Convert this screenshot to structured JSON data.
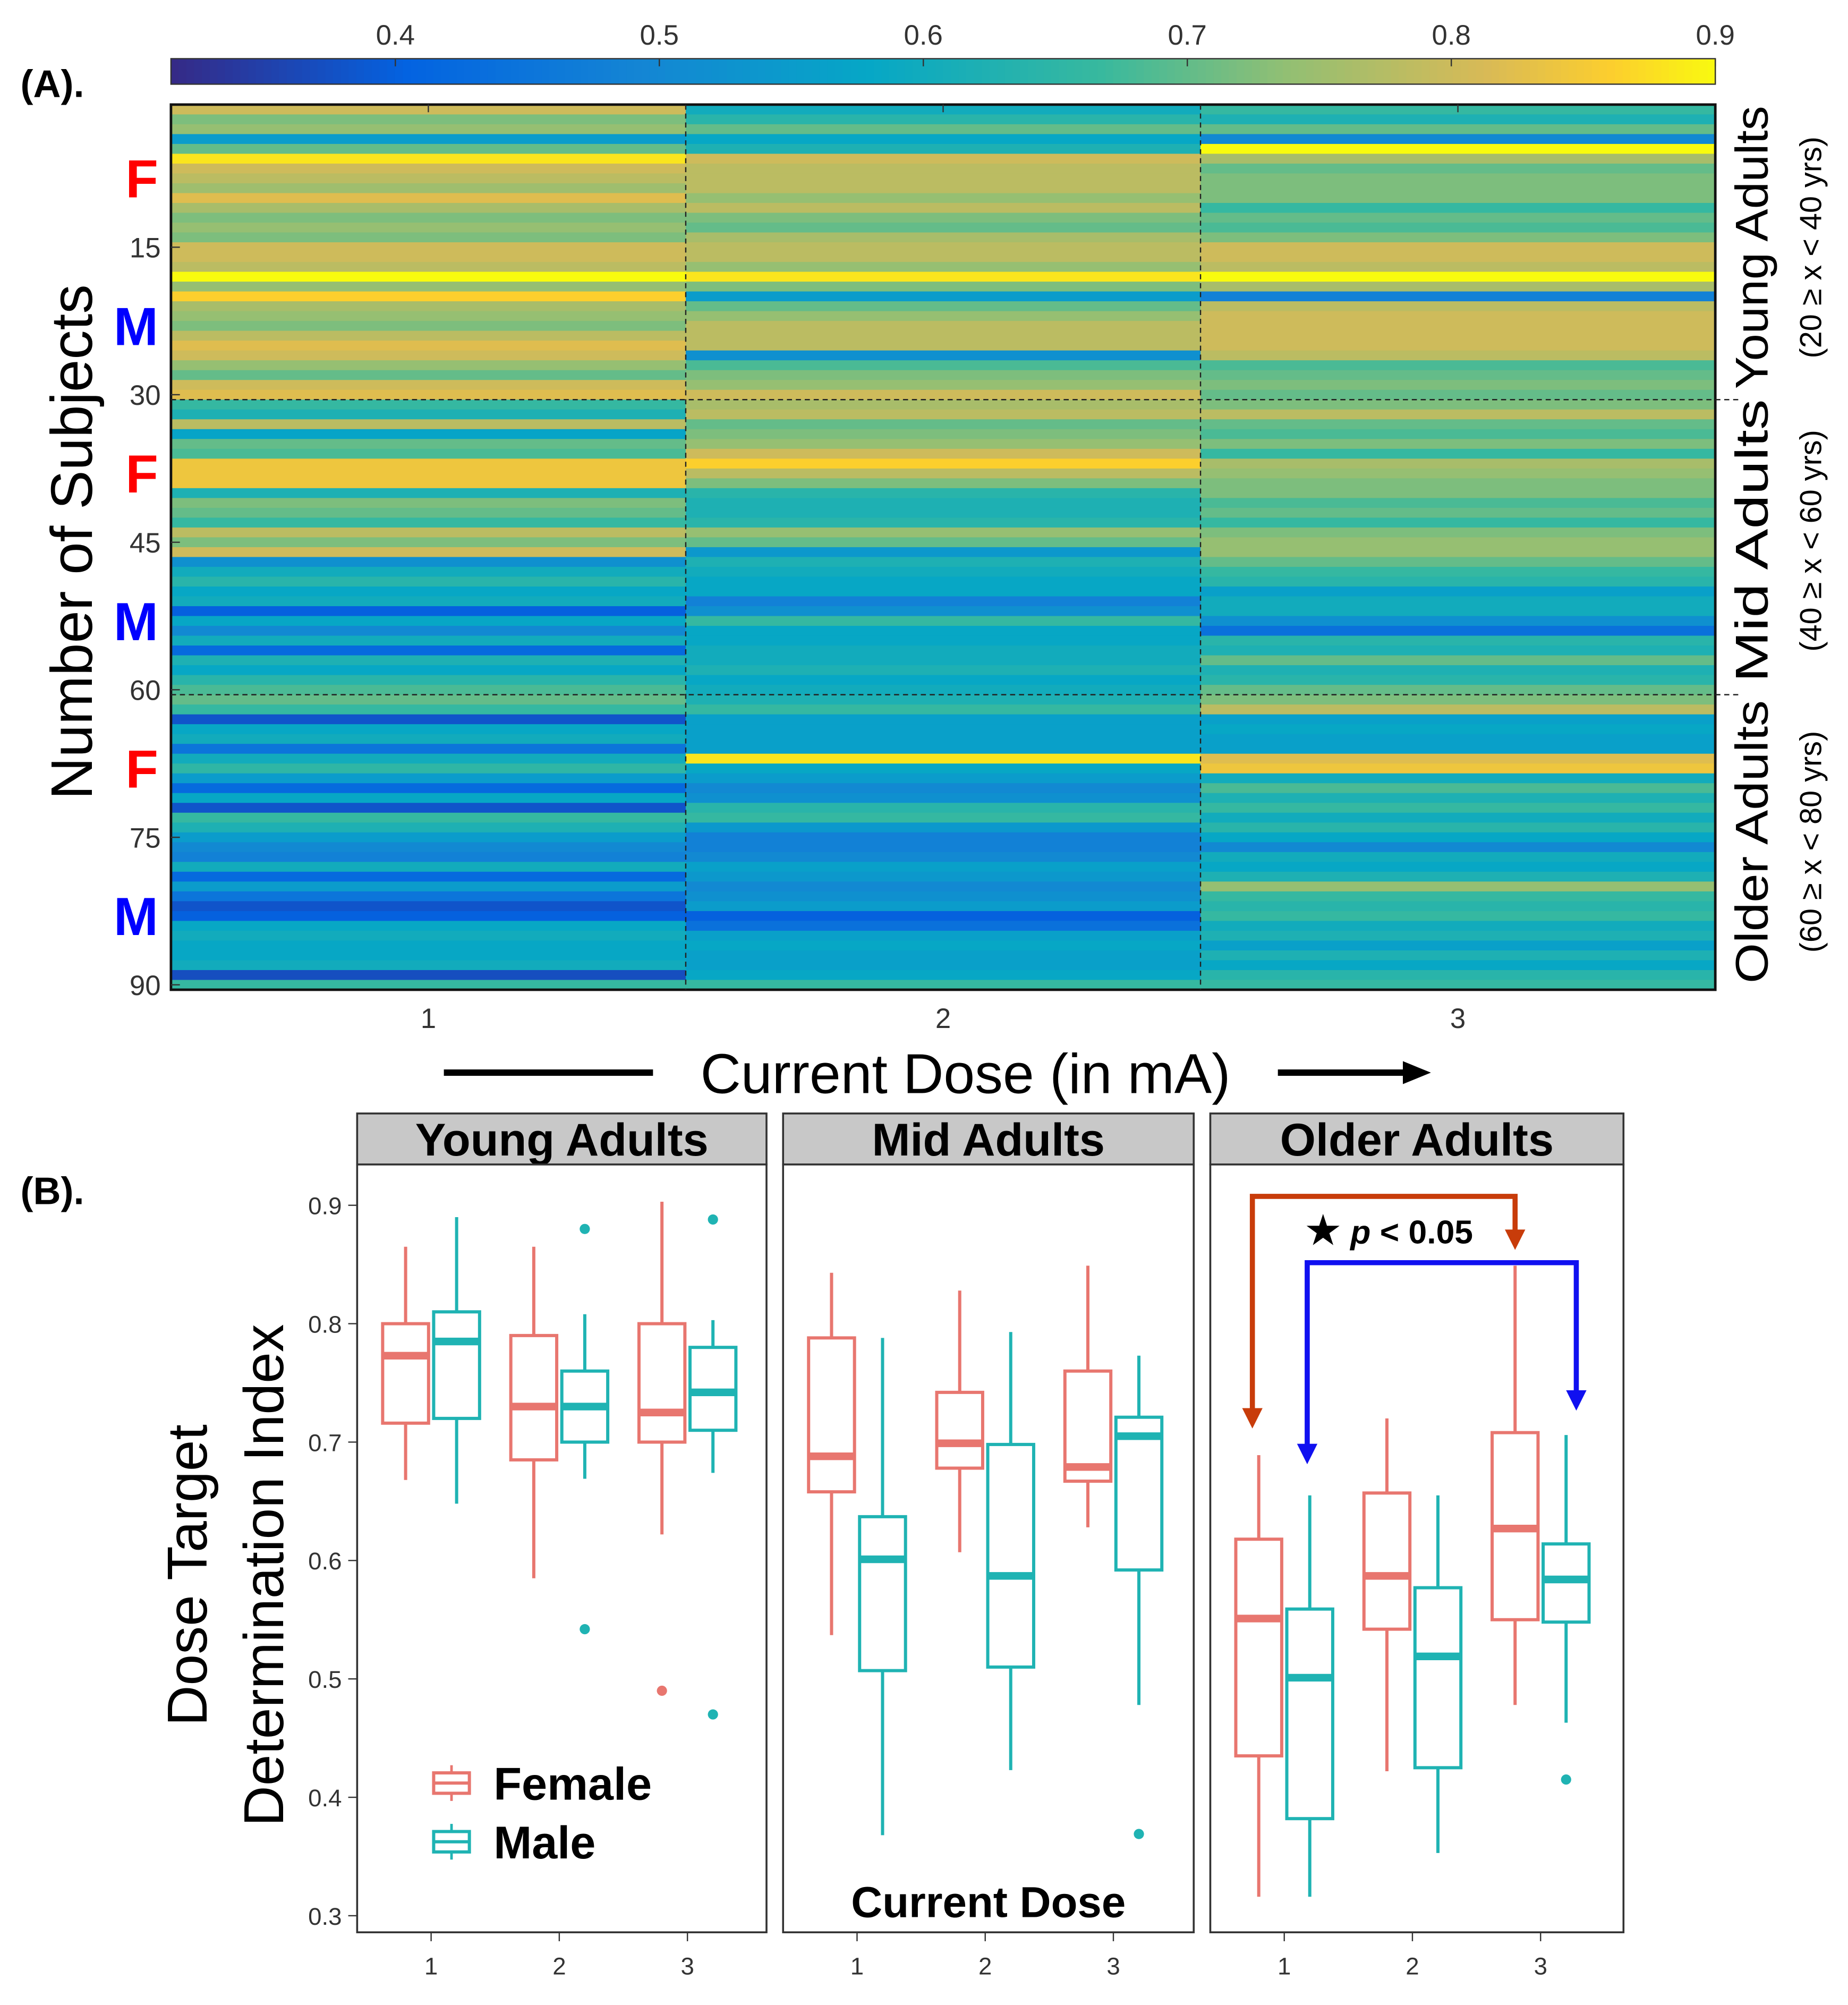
{
  "chart_data": [
    {
      "type": "heatmap",
      "panel_label": "(A).",
      "xlabel": "Current Dose (in mA)",
      "ylabel": "Number of Subjects",
      "x_categories": [
        "1",
        "2",
        "3"
      ],
      "y_ticks": [
        "15",
        "30",
        "45",
        "60",
        "75",
        "90"
      ],
      "y_tick_values": [
        15,
        30,
        45,
        60,
        75,
        90
      ],
      "n_rows": 90,
      "colorbar": {
        "ticks": [
          "0.4",
          "0.5",
          "0.6",
          "0.7",
          "0.8",
          "0.9"
        ],
        "tick_values": [
          0.4,
          0.5,
          0.6,
          0.7,
          0.8,
          0.9
        ],
        "range": [
          0.315,
          0.9
        ],
        "colormap": "parula"
      },
      "sex_labels": [
        {
          "label": "F",
          "row": 8,
          "color": "#ff0000"
        },
        {
          "label": "M",
          "row": 23,
          "color": "#0000ff"
        },
        {
          "label": "F",
          "row": 38,
          "color": "#ff0000"
        },
        {
          "label": "M",
          "row": 53,
          "color": "#0000ff"
        },
        {
          "label": "F",
          "row": 68,
          "color": "#ff0000"
        },
        {
          "label": "M",
          "row": 83,
          "color": "#0000ff"
        }
      ],
      "groups": [
        {
          "name": "Young Adults",
          "range": "(20 ≥ x < 40 yrs)",
          "rows": [
            1,
            30
          ]
        },
        {
          "name": "Mid  Adults",
          "range": "(40 ≥ x < 60 yrs)",
          "rows": [
            31,
            60
          ]
        },
        {
          "name": "Older Adults",
          "range": "(60 ≥ x < 80 yrs)",
          "rows": [
            61,
            90
          ]
        }
      ],
      "values": [
        [
          0.8,
          0.72,
          0.74,
          0.55,
          0.7,
          0.88,
          0.8,
          0.78,
          0.75,
          0.82,
          0.76,
          0.72,
          0.74,
          0.72,
          0.8,
          0.8,
          0.78,
          0.9,
          0.74,
          0.86,
          0.76,
          0.74,
          0.72,
          0.78,
          0.82,
          0.8,
          0.74,
          0.7,
          0.8,
          0.82,
          0.66,
          0.62,
          0.78,
          0.57,
          0.7,
          0.68,
          0.84,
          0.84,
          0.84,
          0.62,
          0.72,
          0.7,
          0.66,
          0.78,
          0.72,
          0.8,
          0.52,
          0.6,
          0.64,
          0.58,
          0.6,
          0.4,
          0.58,
          0.5,
          0.6,
          0.42,
          0.62,
          0.58,
          0.64,
          0.68,
          0.7,
          0.66,
          0.38,
          0.58,
          0.6,
          0.45,
          0.6,
          0.65,
          0.55,
          0.42,
          0.58,
          0.38,
          0.66,
          0.62,
          0.55,
          0.5,
          0.48,
          0.6,
          0.42,
          0.55,
          0.45,
          0.38,
          0.4,
          0.58,
          0.6,
          0.58,
          0.58,
          0.6,
          0.37,
          0.66
        ],
        [
          0.6,
          0.64,
          0.7,
          0.58,
          0.62,
          0.8,
          0.78,
          0.78,
          0.78,
          0.74,
          0.78,
          0.72,
          0.7,
          0.76,
          0.78,
          0.78,
          0.74,
          0.88,
          0.72,
          0.55,
          0.7,
          0.74,
          0.78,
          0.78,
          0.78,
          0.52,
          0.68,
          0.72,
          0.74,
          0.8,
          0.76,
          0.78,
          0.7,
          0.72,
          0.74,
          0.8,
          0.86,
          0.78,
          0.72,
          0.64,
          0.62,
          0.62,
          0.64,
          0.74,
          0.7,
          0.54,
          0.62,
          0.6,
          0.58,
          0.58,
          0.48,
          0.52,
          0.66,
          0.58,
          0.58,
          0.6,
          0.6,
          0.62,
          0.58,
          0.6,
          0.62,
          0.66,
          0.56,
          0.56,
          0.56,
          0.56,
          0.88,
          0.58,
          0.55,
          0.5,
          0.52,
          0.64,
          0.66,
          0.54,
          0.48,
          0.48,
          0.5,
          0.56,
          0.54,
          0.5,
          0.52,
          0.55,
          0.4,
          0.44,
          0.56,
          0.58,
          0.56,
          0.56,
          0.58,
          0.66
        ],
        [
          0.66,
          0.62,
          0.7,
          0.5,
          0.92,
          0.76,
          0.7,
          0.72,
          0.72,
          0.72,
          0.66,
          0.7,
          0.68,
          0.72,
          0.8,
          0.8,
          0.78,
          0.9,
          0.76,
          0.48,
          0.78,
          0.8,
          0.8,
          0.8,
          0.8,
          0.78,
          0.68,
          0.7,
          0.72,
          0.7,
          0.72,
          0.78,
          0.7,
          0.68,
          0.72,
          0.66,
          0.76,
          0.74,
          0.72,
          0.72,
          0.68,
          0.7,
          0.66,
          0.72,
          0.74,
          0.74,
          0.7,
          0.66,
          0.64,
          0.56,
          0.6,
          0.6,
          0.52,
          0.44,
          0.64,
          0.62,
          0.7,
          0.62,
          0.64,
          0.7,
          0.72,
          0.78,
          0.56,
          0.58,
          0.56,
          0.56,
          0.82,
          0.84,
          0.6,
          0.68,
          0.62,
          0.66,
          0.6,
          0.64,
          0.58,
          0.5,
          0.6,
          0.58,
          0.62,
          0.74,
          0.66,
          0.64,
          0.66,
          0.6,
          0.62,
          0.56,
          0.62,
          0.58,
          0.64,
          0.66
        ]
      ]
    },
    {
      "type": "box",
      "panel_label": "(B).",
      "ylabel_line1": "Dose Target",
      "ylabel_line2": "Determination Index",
      "xlabel": "Current Dose",
      "ylim": [
        0.3,
        0.9
      ],
      "y_ticks": [
        "0.3",
        "0.4",
        "0.5",
        "0.6",
        "0.7",
        "0.8",
        "0.9"
      ],
      "y_tick_values": [
        0.3,
        0.4,
        0.5,
        0.6,
        0.7,
        0.8,
        0.9
      ],
      "x_categories": [
        "1",
        "2",
        "3"
      ],
      "legend": [
        {
          "name": "Female",
          "color": "#e8766f"
        },
        {
          "name": "Male",
          "color": "#1fb3b3"
        }
      ],
      "legend_position": "bottom-left",
      "annotation": {
        "star": "★",
        "p_label": "p",
        "text": " < 0.05",
        "colors": [
          "#c83c0a",
          "#1010f0"
        ]
      },
      "panels": [
        {
          "title": "Young Adults",
          "boxes": [
            {
              "dose": 1,
              "sex": "Female",
              "lo": 0.668,
              "q1": 0.716,
              "median": 0.773,
              "q3": 0.8,
              "hi": 0.865,
              "outliers": []
            },
            {
              "dose": 1,
              "sex": "Male",
              "lo": 0.648,
              "q1": 0.72,
              "median": 0.785,
              "q3": 0.81,
              "hi": 0.89,
              "outliers": []
            },
            {
              "dose": 2,
              "sex": "Female",
              "lo": 0.585,
              "q1": 0.685,
              "median": 0.73,
              "q3": 0.79,
              "hi": 0.865,
              "outliers": []
            },
            {
              "dose": 2,
              "sex": "Male",
              "lo": 0.669,
              "q1": 0.7,
              "median": 0.73,
              "q3": 0.76,
              "hi": 0.808,
              "outliers": [
                0.88,
                0.542
              ]
            },
            {
              "dose": 3,
              "sex": "Female",
              "lo": 0.622,
              "q1": 0.7,
              "median": 0.725,
              "q3": 0.8,
              "hi": 0.903,
              "outliers": [
                0.49
              ]
            },
            {
              "dose": 3,
              "sex": "Male",
              "lo": 0.674,
              "q1": 0.71,
              "median": 0.742,
              "q3": 0.78,
              "hi": 0.803,
              "outliers": [
                0.888,
                0.47
              ]
            }
          ]
        },
        {
          "title": "Mid Adults",
          "boxes": [
            {
              "dose": 1,
              "sex": "Female",
              "lo": 0.537,
              "q1": 0.658,
              "median": 0.688,
              "q3": 0.788,
              "hi": 0.843,
              "outliers": []
            },
            {
              "dose": 1,
              "sex": "Male",
              "lo": 0.368,
              "q1": 0.507,
              "median": 0.601,
              "q3": 0.637,
              "hi": 0.788,
              "outliers": []
            },
            {
              "dose": 2,
              "sex": "Female",
              "lo": 0.607,
              "q1": 0.678,
              "median": 0.699,
              "q3": 0.742,
              "hi": 0.828,
              "outliers": []
            },
            {
              "dose": 2,
              "sex": "Male",
              "lo": 0.423,
              "q1": 0.51,
              "median": 0.587,
              "q3": 0.698,
              "hi": 0.793,
              "outliers": []
            },
            {
              "dose": 3,
              "sex": "Female",
              "lo": 0.628,
              "q1": 0.667,
              "median": 0.679,
              "q3": 0.76,
              "hi": 0.849,
              "outliers": []
            },
            {
              "dose": 3,
              "sex": "Male",
              "lo": 0.478,
              "q1": 0.592,
              "median": 0.705,
              "q3": 0.721,
              "hi": 0.773,
              "outliers": [
                0.369
              ]
            }
          ]
        },
        {
          "title": "Older Adults",
          "boxes": [
            {
              "dose": 1,
              "sex": "Female",
              "lo": 0.316,
              "q1": 0.435,
              "median": 0.551,
              "q3": 0.618,
              "hi": 0.689,
              "outliers": []
            },
            {
              "dose": 1,
              "sex": "Male",
              "lo": 0.316,
              "q1": 0.382,
              "median": 0.501,
              "q3": 0.559,
              "hi": 0.655,
              "outliers": []
            },
            {
              "dose": 2,
              "sex": "Female",
              "lo": 0.422,
              "q1": 0.542,
              "median": 0.587,
              "q3": 0.657,
              "hi": 0.72,
              "outliers": []
            },
            {
              "dose": 2,
              "sex": "Male",
              "lo": 0.353,
              "q1": 0.425,
              "median": 0.519,
              "q3": 0.577,
              "hi": 0.655,
              "outliers": []
            },
            {
              "dose": 3,
              "sex": "Female",
              "lo": 0.478,
              "q1": 0.55,
              "median": 0.627,
              "q3": 0.708,
              "hi": 0.849,
              "outliers": []
            },
            {
              "dose": 3,
              "sex": "Male",
              "lo": 0.463,
              "q1": 0.548,
              "median": 0.584,
              "q3": 0.614,
              "hi": 0.706,
              "outliers": [
                0.415
              ]
            }
          ]
        }
      ]
    }
  ]
}
